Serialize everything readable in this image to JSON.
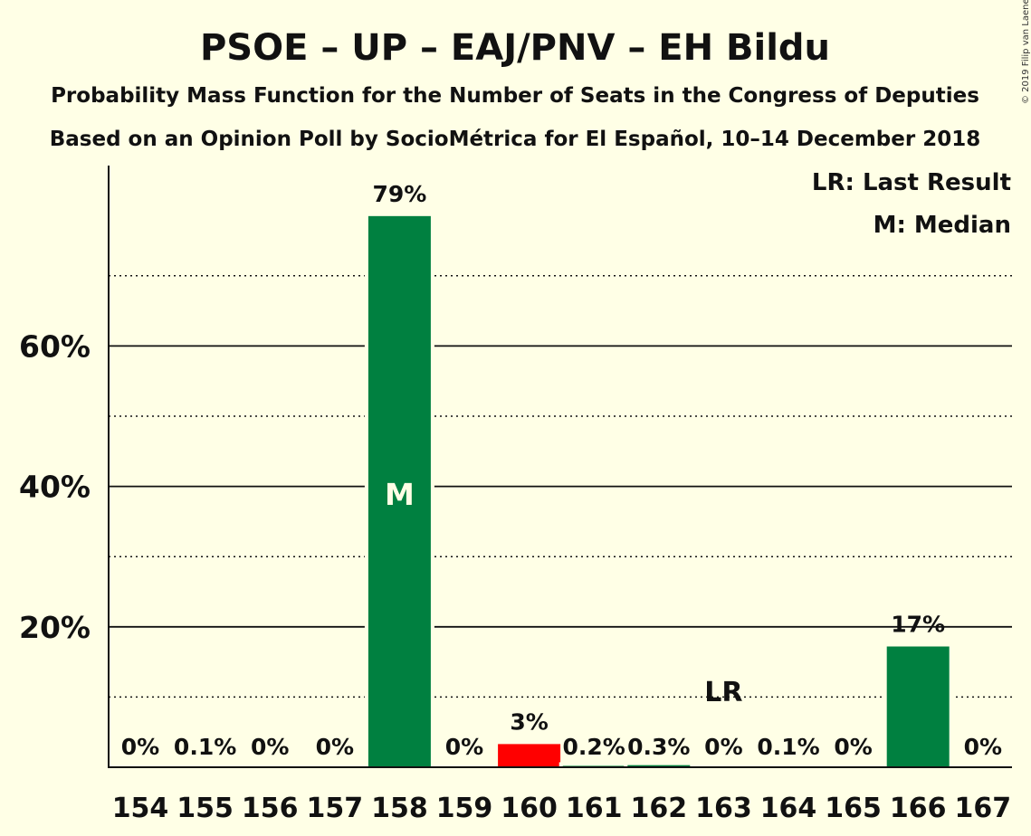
{
  "chart_data": {
    "type": "bar",
    "title": "PSOE – UP – EAJ/PNV – EH Bildu",
    "subtitle_lines": [
      "Probability Mass Function for the Number of Seats in the Congress of Deputies",
      "Based on an Opinion Poll by SocioMétrica for El Español, 10–14 December 2018"
    ],
    "categories": [
      "154",
      "155",
      "156",
      "157",
      "158",
      "159",
      "160",
      "161",
      "162",
      "163",
      "164",
      "165",
      "166",
      "167"
    ],
    "values": [
      0,
      0.1,
      0,
      0,
      78.5,
      0,
      3.3,
      0.2,
      0.3,
      0,
      0.1,
      0,
      17.2,
      0
    ],
    "value_labels": [
      "0%",
      "0.1%",
      "0%",
      "0%",
      "79%",
      "0%",
      "3%",
      "0.2%",
      "0.3%",
      "0%",
      "0.1%",
      "0%",
      "17%",
      "0%"
    ],
    "bar_colors": [
      "#008040",
      "#008040",
      "#008040",
      "#008040",
      "#008040",
      "#008040",
      "#FF0000",
      "#008040",
      "#008040",
      "#008040",
      "#008040",
      "#008040",
      "#008040",
      "#008040"
    ],
    "ylim": [
      0,
      85
    ],
    "yticks_major": [
      20,
      40,
      60
    ],
    "ytick_labels": [
      "20%",
      "40%",
      "60%"
    ],
    "yticks_minor": [
      10,
      30,
      50,
      70
    ],
    "median": {
      "category": "158",
      "label": "M"
    },
    "last_result": {
      "category": "163",
      "label": "LR"
    },
    "legend": [
      "LR: Last Result",
      "M: Median"
    ],
    "legend_position": "top-right",
    "copyright": "© 2019 Filip van Laenen"
  }
}
